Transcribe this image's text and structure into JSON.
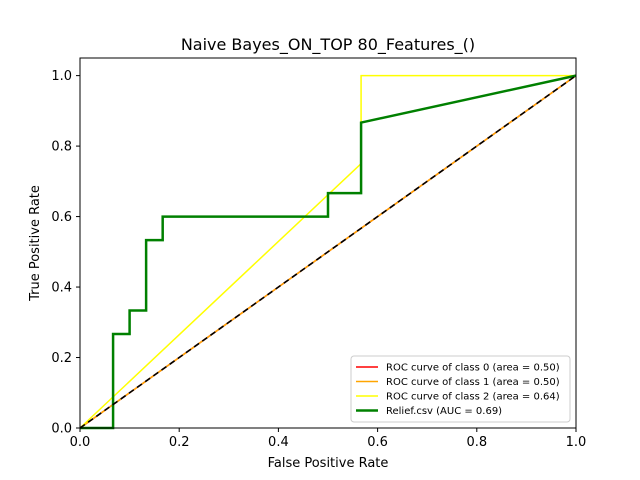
{
  "chart_data": {
    "type": "line",
    "title": "Naive Bayes_ON_TOP 80_Features_()",
    "xlabel": "False Positive Rate",
    "ylabel": "True Positive Rate",
    "xlim": [
      0.0,
      1.0
    ],
    "ylim": [
      0.0,
      1.05
    ],
    "xticks": [
      0.0,
      0.2,
      0.4,
      0.6,
      0.8,
      1.0
    ],
    "yticks": [
      0.0,
      0.2,
      0.4,
      0.6,
      0.8,
      1.0
    ],
    "xtick_labels": [
      "0.0",
      "0.2",
      "0.4",
      "0.6",
      "0.8",
      "1.0"
    ],
    "ytick_labels": [
      "0.0",
      "0.2",
      "0.4",
      "0.6",
      "0.8",
      "1.0"
    ],
    "grid": false,
    "legend_position": "lower-right",
    "series": [
      {
        "name": "ROC curve of class 0 (area = 0.50)",
        "color": "#ff0000",
        "width": 1.5,
        "x": [
          0.0,
          1.0
        ],
        "y": [
          0.0,
          1.0
        ]
      },
      {
        "name": "ROC curve of class 1 (area = 0.50)",
        "color": "#ffa500",
        "width": 1.5,
        "x": [
          0.0,
          1.0
        ],
        "y": [
          0.0,
          1.0
        ]
      },
      {
        "name": "ROC curve of class 2 (area = 0.64)",
        "color": "#ffff00",
        "width": 1.5,
        "x": [
          0.0,
          0.5667,
          0.5667,
          1.0
        ],
        "y": [
          0.0,
          0.75,
          1.0,
          1.0
        ]
      },
      {
        "name": "Relief.csv (AUC = 0.69)",
        "color": "#008000",
        "width": 2.5,
        "x": [
          0.0,
          0.0667,
          0.0667,
          0.1,
          0.1,
          0.1333,
          0.1333,
          0.1667,
          0.1667,
          0.5,
          0.5,
          0.5667,
          0.5667,
          1.0
        ],
        "y": [
          0.0,
          0.0,
          0.2667,
          0.2667,
          0.3333,
          0.3333,
          0.5333,
          0.5333,
          0.6,
          0.6,
          0.6667,
          0.6667,
          0.8667,
          1.0
        ]
      }
    ],
    "reference_line": {
      "color": "#000000",
      "style": "dashed",
      "x": [
        0.0,
        1.0
      ],
      "y": [
        0.0,
        1.0
      ]
    }
  }
}
